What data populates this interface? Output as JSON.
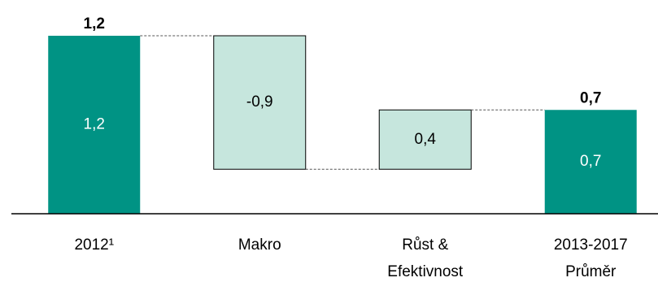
{
  "chart_data": {
    "type": "waterfall",
    "categories": [
      "2012¹",
      "Makro",
      "Růst & Efektivnost",
      "2013-2017 Průměr"
    ],
    "values": [
      1.2,
      -0.9,
      0.4,
      0.7
    ],
    "value_labels": [
      "1,2",
      "-0,9",
      "0,4",
      "0,7"
    ],
    "kinds": [
      "total",
      "delta",
      "delta",
      "total"
    ],
    "colors": {
      "total": "#009384",
      "delta": "#c6e6dd"
    }
  }
}
